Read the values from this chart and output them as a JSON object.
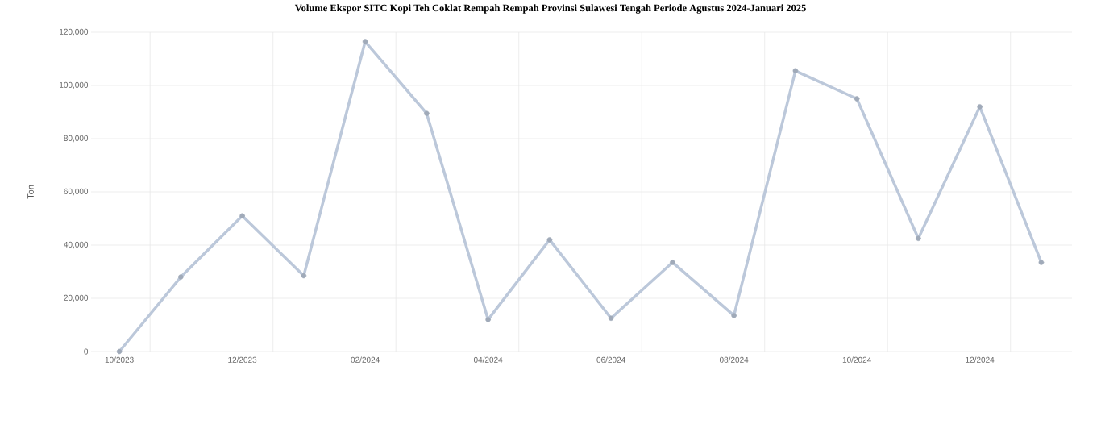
{
  "chart_data": {
    "type": "line",
    "title": "Volume Ekspor SITC Kopi Teh Coklat Rempah Rempah Provinsi Sulawesi Tengah Periode Agustus 2024-Januari 2025",
    "ylabel": "Ton",
    "categories": [
      "10/2023",
      null,
      "12/2023",
      null,
      "02/2024",
      null,
      "04/2024",
      null,
      "06/2024",
      null,
      "08/2024",
      null,
      "10/2024",
      null,
      "12/2024",
      null
    ],
    "series": [
      {
        "color": "#bcc8da",
        "values": [
          0,
          28000,
          51000,
          28500,
          116500,
          89500,
          12000,
          42000,
          12500,
          33500,
          13500,
          105500,
          95000,
          42500,
          92000,
          33500
        ]
      }
    ],
    "ylim": [
      0,
      120000
    ],
    "yticks": [
      0,
      {
        "value": 20000,
        "label": "20,000"
      },
      {
        "value": 40000,
        "label": "40,000"
      },
      {
        "value": 60000,
        "label": "60,000"
      },
      {
        "value": 80000,
        "label": "80,000"
      },
      {
        "value": 100000,
        "label": "100,000"
      },
      {
        "value": 120000,
        "label": "120,000"
      }
    ],
    "grid": true,
    "marker": "circle",
    "line_style": "solid"
  }
}
